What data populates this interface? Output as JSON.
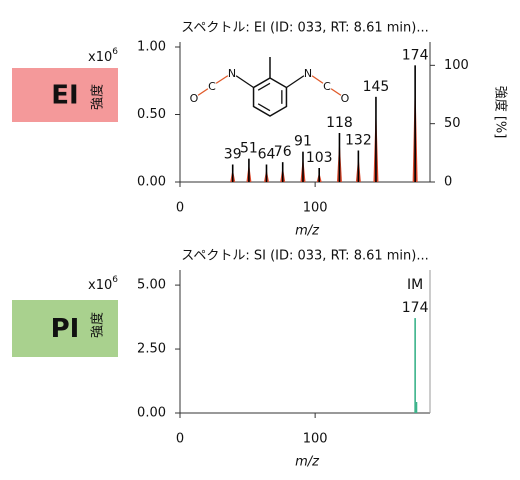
{
  "chart_data": [
    {
      "type": "spectrum",
      "badge": "EI",
      "badge_color": "#f4999a",
      "title": "スペクトル: EI (ID: 033, RT: 8.61 min)...",
      "x_label": "m/z",
      "y_label": "強度",
      "y2_label": "強度 [%]",
      "y_multiplier": {
        "base": "x10",
        "exponent": "6"
      },
      "structure_atoms": [
        "N",
        "C",
        "O",
        "N",
        "C",
        "O"
      ],
      "xlim": [
        0,
        185
      ],
      "xticks": [
        0,
        100
      ],
      "ylim": [
        0,
        1.037
      ],
      "yticks": [
        {
          "value": 0,
          "label": "0.00"
        },
        {
          "value": 0.5,
          "label": "0.50"
        },
        {
          "value": 1,
          "label": "1.00"
        }
      ],
      "y2lim": [
        0,
        120
      ],
      "y2ticks": [
        0,
        50,
        100
      ],
      "series": [
        {
          "name": "EI",
          "axis": "y2",
          "color": "#000000",
          "profile_color": "#d9472b",
          "x": [
            39,
            51,
            64,
            76,
            91,
            103,
            118,
            132,
            145,
            174
          ],
          "values": [
            15,
            20,
            15,
            17,
            26,
            12,
            42,
            27,
            73,
            100
          ],
          "label_colors": [
            "#111111",
            "#111111",
            "#111111",
            "#111111",
            "#111111",
            "#111111",
            "#111111",
            "#111111",
            "#111111",
            "#1f6fd0"
          ]
        }
      ],
      "right_frame": false
    },
    {
      "type": "spectrum",
      "badge": "PI",
      "badge_color": "#a9d18e",
      "title": "スペクトル: SI (ID: 033, RT: 8.61 min)...",
      "x_label": "m/z",
      "y_label": "強度",
      "y_multiplier": {
        "base": "x10",
        "exponent": "6"
      },
      "annotation": "IM",
      "xlim": [
        0,
        185
      ],
      "xticks": [
        0,
        100
      ],
      "ylim": [
        0,
        5.59
      ],
      "yticks": [
        {
          "value": 0,
          "label": "0.00"
        },
        {
          "value": 2.5,
          "label": "2.50"
        },
        {
          "value": 5,
          "label": "5.00"
        }
      ],
      "series": [
        {
          "name": "SI",
          "color": "#3bb38a",
          "x": [
            174,
            175
          ],
          "values": [
            3.71,
            0.43
          ],
          "label_colors": [
            "#1f6fd0",
            null
          ]
        }
      ],
      "right_frame": true
    }
  ]
}
